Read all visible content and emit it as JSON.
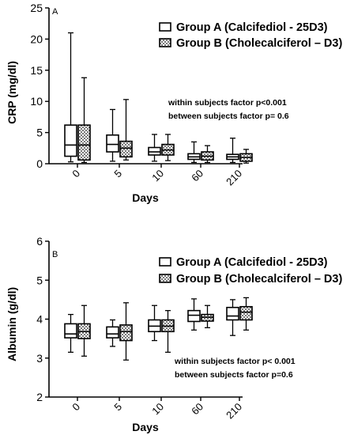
{
  "chart_data": [
    {
      "type": "box",
      "panel_label": "A",
      "ylabel": "CRP (mg/dl)",
      "xlabel": "Days",
      "categories": [
        "0",
        "5",
        "10",
        "60",
        "210"
      ],
      "ylim": [
        0,
        25
      ],
      "yticks": [
        0,
        5,
        10,
        15,
        20,
        25
      ],
      "legend_placement": "top-right",
      "series": [
        {
          "name": "Group A (Calcifediol - 25D3)",
          "fill": "white",
          "boxes": [
            {
              "min": 0.3,
              "q1": 1.2,
              "median": 3.0,
              "q3": 6.2,
              "max": 21.0
            },
            {
              "min": 0.4,
              "q1": 1.9,
              "median": 3.1,
              "q3": 4.6,
              "max": 8.7
            },
            {
              "min": 0.4,
              "q1": 1.4,
              "median": 1.9,
              "q3": 2.6,
              "max": 4.7
            },
            {
              "min": 0.2,
              "q1": 0.7,
              "median": 1.1,
              "q3": 1.6,
              "max": 3.5
            },
            {
              "min": 0.2,
              "q1": 0.7,
              "median": 1.1,
              "q3": 1.5,
              "max": 4.1
            }
          ]
        },
        {
          "name": "Group B (Cholecalciferol – D3)",
          "fill": "checkered",
          "boxes": [
            {
              "min": 0.2,
              "q1": 0.6,
              "median": 3.0,
              "q3": 6.2,
              "max": 13.8
            },
            {
              "min": 0.6,
              "q1": 1.1,
              "median": 2.5,
              "q3": 3.6,
              "max": 10.3
            },
            {
              "min": 0.5,
              "q1": 1.4,
              "median": 2.2,
              "q3": 3.1,
              "max": 4.7
            },
            {
              "min": 0.2,
              "q1": 0.6,
              "median": 1.2,
              "q3": 1.9,
              "max": 2.9
            },
            {
              "min": 0.1,
              "q1": 0.4,
              "median": 1.0,
              "q3": 1.6,
              "max": 2.3
            }
          ]
        }
      ],
      "annotations": [
        "within subjects factor p<0.001",
        "between subjects factor p= 0.6"
      ]
    },
    {
      "type": "box",
      "panel_label": "B",
      "ylabel": "Albumin (g/dl)",
      "xlabel": "Days",
      "categories": [
        "0",
        "5",
        "10",
        "60",
        "210"
      ],
      "ylim": [
        2,
        6
      ],
      "yticks": [
        2,
        3,
        4,
        5,
        6
      ],
      "legend_placement": "top-right",
      "series": [
        {
          "name": "Group A (Calcifediol - 25D3)",
          "fill": "white",
          "boxes": [
            {
              "min": 3.15,
              "q1": 3.52,
              "median": 3.62,
              "q3": 3.88,
              "max": 4.12
            },
            {
              "min": 3.3,
              "q1": 3.52,
              "median": 3.62,
              "q3": 3.8,
              "max": 3.98
            },
            {
              "min": 3.45,
              "q1": 3.68,
              "median": 3.82,
              "q3": 3.98,
              "max": 4.35
            },
            {
              "min": 3.72,
              "q1": 3.94,
              "median": 4.1,
              "q3": 4.22,
              "max": 4.52
            },
            {
              "min": 3.58,
              "q1": 3.98,
              "median": 4.08,
              "q3": 4.3,
              "max": 4.5
            }
          ]
        },
        {
          "name": "Group B (Cholecalciferol – D3)",
          "fill": "checkered",
          "boxes": [
            {
              "min": 3.05,
              "q1": 3.5,
              "median": 3.68,
              "q3": 3.88,
              "max": 4.35
            },
            {
              "min": 2.95,
              "q1": 3.45,
              "median": 3.68,
              "q3": 3.85,
              "max": 4.42
            },
            {
              "min": 3.15,
              "q1": 3.68,
              "median": 3.82,
              "q3": 3.98,
              "max": 4.22
            },
            {
              "min": 3.78,
              "q1": 3.95,
              "median": 4.05,
              "q3": 4.12,
              "max": 4.35
            },
            {
              "min": 3.72,
              "q1": 3.98,
              "median": 4.18,
              "q3": 4.32,
              "max": 4.55
            }
          ]
        }
      ],
      "annotations": [
        "within subjects factor p< 0.001",
        "between subjects factor p=0.6"
      ]
    }
  ]
}
